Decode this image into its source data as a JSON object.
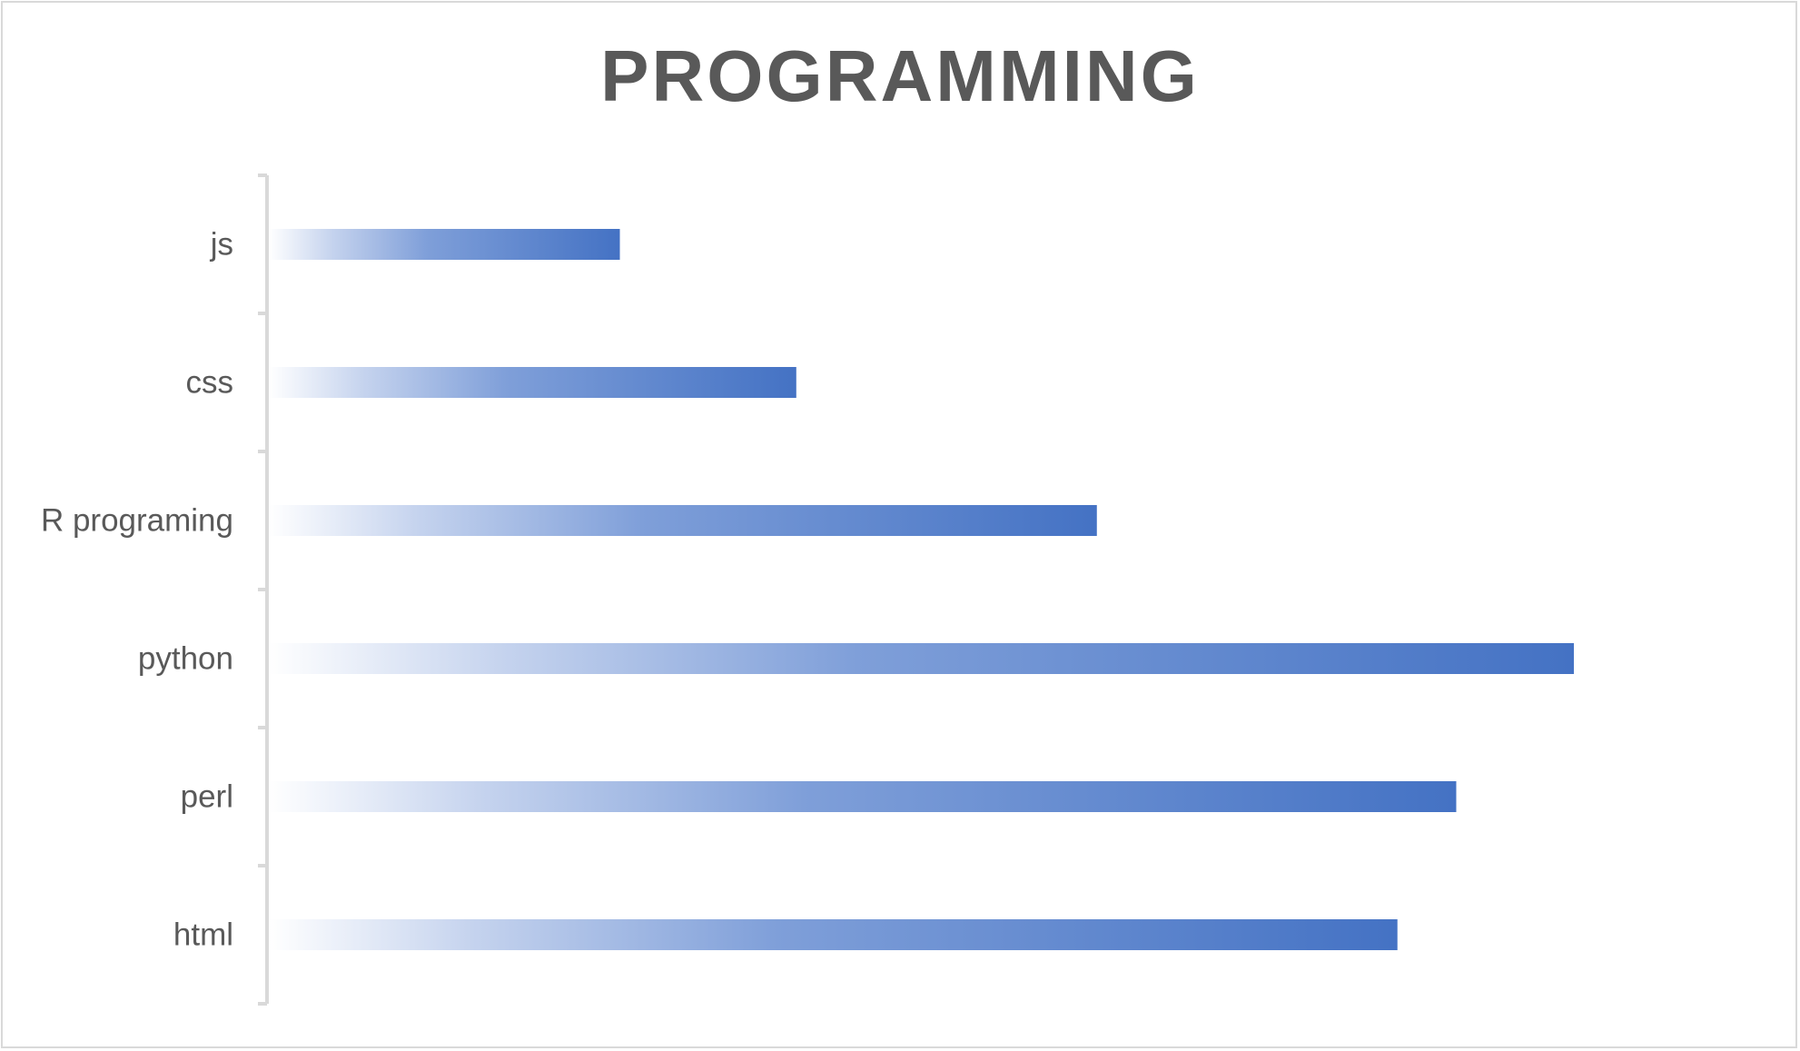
{
  "chart_data": {
    "type": "bar",
    "orientation": "horizontal",
    "title": "PROGRAMMING",
    "categories": [
      "js",
      "css",
      "R programing",
      "python",
      "perl",
      "html"
    ],
    "values": [
      27,
      40.5,
      63.5,
      100,
      91,
      86.5
    ],
    "xlim": [
      0,
      100
    ],
    "xlabel": "",
    "ylabel": "",
    "grid": false,
    "legend": "none",
    "bar_color": "#4472c4",
    "bar_gradient": "fades from white at the axis to blue at the bar end"
  }
}
